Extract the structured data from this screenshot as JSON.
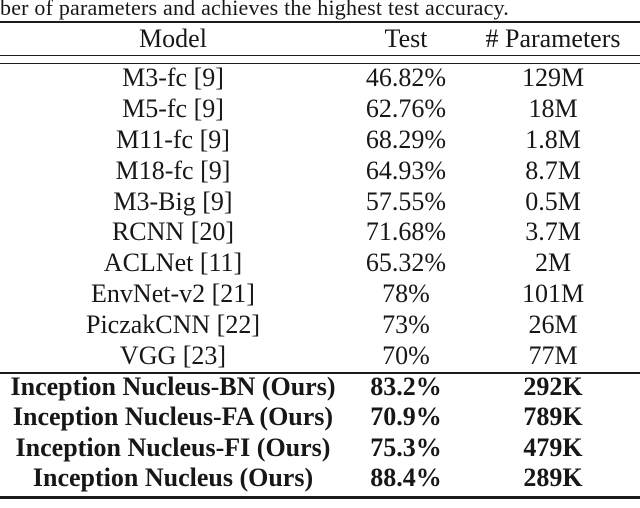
{
  "page": {
    "background_color": "#ffffff",
    "text_color": "#171717",
    "rule_color": "#1c1c1c"
  },
  "caption": "ber of parameters and achieves the highest test accuracy.",
  "table": {
    "headers": {
      "model": "Model",
      "test": "Test",
      "params": "# Parameters"
    },
    "rows": [
      {
        "model": "M3-fc [9]",
        "test": "46.82%",
        "params": "129M",
        "bold": false
      },
      {
        "model": "M5-fc [9]",
        "test": "62.76%",
        "params": "18M",
        "bold": false
      },
      {
        "model": "M11-fc [9]",
        "test": "68.29%",
        "params": "1.8M",
        "bold": false
      },
      {
        "model": "M18-fc [9]",
        "test": "64.93%",
        "params": "8.7M",
        "bold": false
      },
      {
        "model": "M3-Big [9]",
        "test": "57.55%",
        "params": "0.5M",
        "bold": false
      },
      {
        "model": "RCNN [20]",
        "test": "71.68%",
        "params": "3.7M",
        "bold": false
      },
      {
        "model": "ACLNet [11]",
        "test": "65.32%",
        "params": "2M",
        "bold": false
      },
      {
        "model": "EnvNet-v2 [21]",
        "test": "78%",
        "params": "101M",
        "bold": false
      },
      {
        "model": "PiczakCNN [22]",
        "test": "73%",
        "params": "26M",
        "bold": false
      },
      {
        "model": "VGG [23]",
        "test": "70%",
        "params": "77M",
        "bold": false
      },
      {
        "model": "Inception Nucleus-BN (Ours)",
        "test": "83.2%",
        "params": "292K",
        "bold": true
      },
      {
        "model": "Inception Nucleus-FA (Ours)",
        "test": "70.9%",
        "params": "789K",
        "bold": true
      },
      {
        "model": "Inception Nucleus-FI (Ours)",
        "test": "75.3%",
        "params": "479K",
        "bold": true
      },
      {
        "model": "Inception Nucleus (Ours)",
        "test": "88.4%",
        "params": "289K",
        "bold": true
      }
    ]
  }
}
